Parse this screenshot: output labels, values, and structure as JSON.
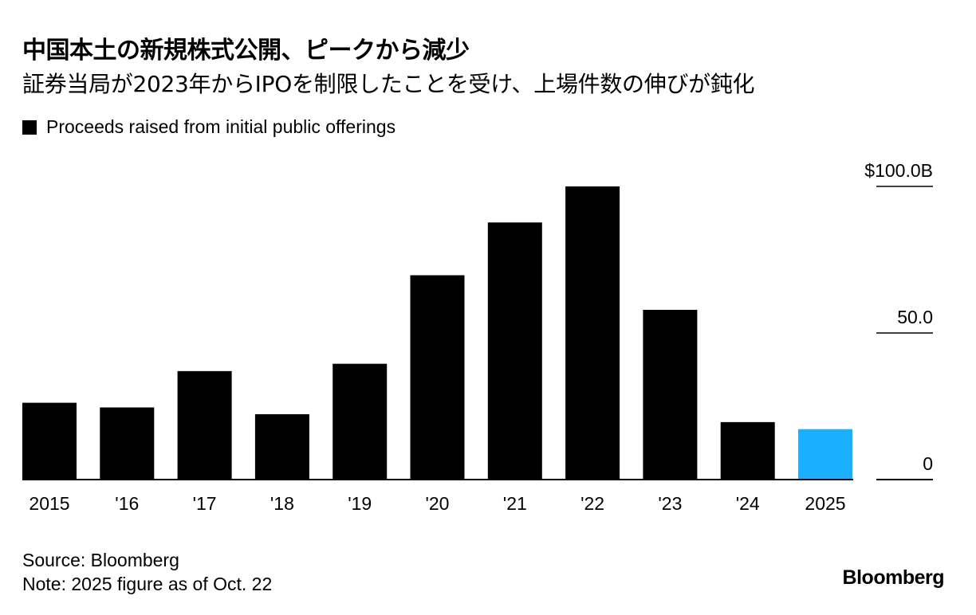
{
  "header": {
    "title": "中国本土の新規株式公開、ピークから減少",
    "subtitle": "証券当局が2023年からIPOを制限したことを受け、上場件数の伸びが鈍化"
  },
  "footer": {
    "source": "Source: Bloomberg",
    "note": "Note: 2025 figure as of Oct. 22",
    "brand": "Bloomberg"
  },
  "colors": {
    "bar": "#000000",
    "highlight": "#1ab0ff",
    "axis": "#000000"
  },
  "chart_data": {
    "type": "bar",
    "title": "中国本土の新規株式公開、ピークから減少",
    "subtitle": "証券当局が2023年からIPOを制限したことを受け、上場件数の伸びが鈍化",
    "legend": [
      "Proceeds raised from initial public offerings"
    ],
    "legend_position": "top-left",
    "categories": [
      "2015",
      "'16",
      "'17",
      "'18",
      "'19",
      "'20",
      "'21",
      "'22",
      "'23",
      "'24",
      "2025"
    ],
    "series": [
      {
        "name": "Proceeds raised from initial public offerings",
        "values": [
          26.2,
          24.6,
          37.0,
          22.3,
          39.5,
          69.7,
          87.7,
          100.0,
          57.9,
          19.6,
          17.2
        ]
      }
    ],
    "highlight_index": 10,
    "ylim": [
      0,
      100
    ],
    "yticks": [
      {
        "value": 0,
        "label": "0"
      },
      {
        "value": 50,
        "label": "50.0"
      },
      {
        "value": 100,
        "label": "$100.0B"
      }
    ],
    "y_axis_position": "right",
    "grid": false
  }
}
